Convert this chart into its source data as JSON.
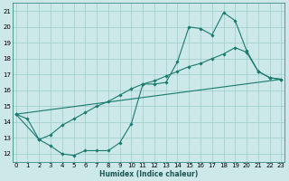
{
  "xlabel": "Humidex (Indice chaleur)",
  "bg_color": "#cce8e8",
  "grid_color": "#99cccc",
  "line_color": "#1a7a6e",
  "x_ticks": [
    0,
    1,
    2,
    3,
    4,
    5,
    6,
    7,
    8,
    9,
    10,
    11,
    12,
    13,
    14,
    15,
    16,
    17,
    18,
    19,
    20,
    21,
    22,
    23
  ],
  "y_ticks": [
    12,
    13,
    14,
    15,
    16,
    17,
    18,
    19,
    20,
    21
  ],
  "xlim": [
    -0.3,
    23.3
  ],
  "ylim": [
    11.5,
    21.5
  ],
  "line1_x": [
    0,
    1,
    2,
    3,
    4,
    5,
    6,
    7,
    8,
    9,
    10,
    11,
    12,
    13,
    14,
    15,
    16,
    17,
    18,
    19,
    20,
    21,
    22,
    23
  ],
  "line1_y": [
    14.5,
    14.2,
    12.9,
    12.5,
    12.0,
    11.9,
    12.2,
    12.2,
    12.2,
    12.7,
    13.9,
    16.4,
    16.4,
    16.5,
    17.8,
    20.0,
    19.9,
    19.5,
    20.9,
    20.4,
    18.5,
    17.2,
    16.8,
    16.7
  ],
  "line2_x": [
    0,
    2,
    3,
    4,
    5,
    6,
    7,
    8,
    9,
    10,
    11,
    12,
    13,
    14,
    15,
    16,
    17,
    18,
    19,
    20,
    21,
    22,
    23
  ],
  "line2_y": [
    14.5,
    12.9,
    13.2,
    13.8,
    14.2,
    14.6,
    15.0,
    15.3,
    15.7,
    16.1,
    16.4,
    16.6,
    16.9,
    17.2,
    17.5,
    17.7,
    18.0,
    18.3,
    18.7,
    18.4,
    17.2,
    16.8,
    16.7
  ],
  "line3_x": [
    0,
    23
  ],
  "line3_y": [
    14.5,
    16.7
  ],
  "xlabel_fontsize": 5.5,
  "tick_fontsize": 5,
  "lw": 0.8,
  "ms": 1.8
}
